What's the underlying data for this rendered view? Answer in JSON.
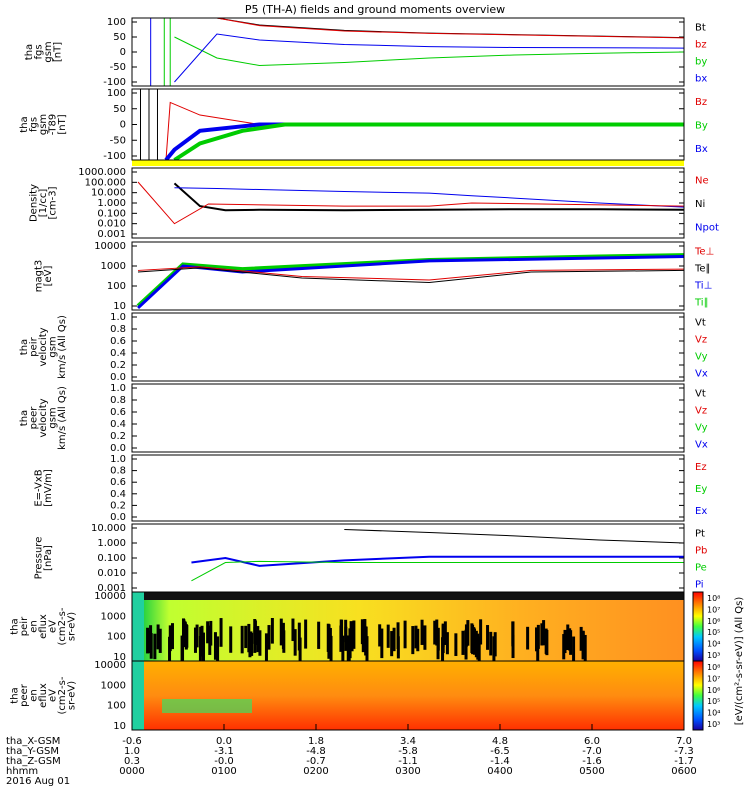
{
  "title": "P5 (TH-A) fields and ground moments overview",
  "date_label": "2016 Aug 01",
  "colors": {
    "black": "#000000",
    "red": "#e00000",
    "green": "#00cc00",
    "blue": "#0000ee",
    "yellow": "#ffff00"
  },
  "bottom_axis": {
    "rows": [
      {
        "name": "tha_X-GSM",
        "values": [
          "-0.6",
          "0.0",
          "1.8",
          "3.4",
          "4.8",
          "6.0",
          "7.0"
        ]
      },
      {
        "name": "tha_Y-GSM",
        "values": [
          "1.0",
          "-3.1",
          "-4.8",
          "-5.8",
          "-6.5",
          "-7.0",
          "-7.3"
        ]
      },
      {
        "name": "tha_Z-GSM",
        "values": [
          "0.3",
          "-0.0",
          "-0.7",
          "-1.1",
          "-1.4",
          "-1.6",
          "-1.7"
        ]
      },
      {
        "name": "hhmm",
        "values": [
          "0000",
          "0100",
          "0200",
          "0300",
          "0400",
          "0500",
          "0600"
        ]
      }
    ]
  },
  "panels": [
    {
      "id": "fgs",
      "ylabel": [
        "tha",
        "fgs",
        "gsm",
        "[nT]"
      ],
      "ticks": [
        "100",
        "50",
        "0",
        "-50",
        "-100"
      ],
      "legend": [
        {
          "text": "Bt",
          "color": "black"
        },
        {
          "text": "bz",
          "color": "red"
        },
        {
          "text": "by",
          "color": "green"
        },
        {
          "text": "bx",
          "color": "blue"
        }
      ]
    },
    {
      "id": "fgs_dev",
      "ylabel": [
        "tha",
        "fgs",
        "gsm",
        "-T89",
        "[nT]"
      ],
      "ticks": [
        "100",
        "50",
        "0",
        "-50",
        "-100"
      ],
      "legend": [
        {
          "text": "Bz",
          "color": "red"
        },
        {
          "text": "By",
          "color": "green"
        },
        {
          "text": "Bx",
          "color": "blue"
        }
      ]
    },
    {
      "id": "density",
      "ylabel": [
        "Density",
        "[1/cc]",
        "[cm-3]"
      ],
      "ticks": [
        "1000.000",
        "100.000",
        "10.000",
        "1.000",
        "0.100",
        "0.010",
        "0.001"
      ],
      "legend": [
        {
          "text": "Ne",
          "color": "red"
        },
        {
          "text": "Ni",
          "color": "black"
        },
        {
          "text": "Npot",
          "color": "blue"
        }
      ]
    },
    {
      "id": "temp",
      "ylabel": [
        "magt3",
        "[eV]"
      ],
      "ticks": [
        "10000",
        "1000",
        "100",
        "10"
      ],
      "legend": [
        {
          "text": "Te⊥",
          "color": "red"
        },
        {
          "text": "Te∥",
          "color": "black"
        },
        {
          "text": "Ti⊥",
          "color": "blue"
        },
        {
          "text": "Ti∥",
          "color": "green"
        }
      ]
    },
    {
      "id": "peir_vel",
      "ylabel": [
        "tha",
        "peir",
        "velocity",
        "gsm",
        "km/s (All Qs)"
      ],
      "ticks": [
        "1.0",
        "0.8",
        "0.6",
        "0.4",
        "0.2",
        "0.0"
      ],
      "legend": [
        {
          "text": "Vt",
          "color": "black"
        },
        {
          "text": "Vz",
          "color": "red"
        },
        {
          "text": "Vy",
          "color": "green"
        },
        {
          "text": "Vx",
          "color": "blue"
        }
      ]
    },
    {
      "id": "peer_vel",
      "ylabel": [
        "tha",
        "peer",
        "velocity",
        "gsm",
        "km/s (All Qs)"
      ],
      "ticks": [
        "1.0",
        "0.8",
        "0.6",
        "0.4",
        "0.2",
        "0.0"
      ],
      "legend": [
        {
          "text": "Vt",
          "color": "black"
        },
        {
          "text": "Vz",
          "color": "red"
        },
        {
          "text": "Vy",
          "color": "green"
        },
        {
          "text": "Vx",
          "color": "blue"
        }
      ]
    },
    {
      "id": "efield",
      "ylabel": [
        "E=-VxB",
        "[mV/m]"
      ],
      "ticks": [
        "1.0",
        "0.8",
        "0.6",
        "0.4",
        "0.2",
        "0.0"
      ],
      "legend": [
        {
          "text": "Ez",
          "color": "red"
        },
        {
          "text": "Ey",
          "color": "green"
        },
        {
          "text": "Ex",
          "color": "blue"
        }
      ]
    },
    {
      "id": "pressure",
      "ylabel": [
        "Pressure",
        "[nPa]"
      ],
      "ticks": [
        "10.000",
        "1.000",
        "0.100",
        "0.010",
        "0.001"
      ],
      "legend": [
        {
          "text": "Pt",
          "color": "black"
        },
        {
          "text": "Pb",
          "color": "red"
        },
        {
          "text": "Pe",
          "color": "green"
        },
        {
          "text": "Pi",
          "color": "blue"
        }
      ]
    },
    {
      "id": "peir_spec",
      "ylabel": [
        "tha",
        "peir",
        "en",
        "eflux",
        "eV",
        "(cm2-s-",
        "sr-eV)"
      ],
      "ticks": [
        "10000",
        "1000",
        "100",
        "10"
      ]
    },
    {
      "id": "peer_spec",
      "ylabel": [
        "tha",
        "peer",
        "en",
        "eflux",
        "eV",
        "(cm2-s-",
        "sr-eV)"
      ],
      "ticks": [
        "10000",
        "1000",
        "100",
        "10"
      ]
    }
  ],
  "colorbar": {
    "label": "[eV/(cm²-s-sr-eV)] (All Qs)",
    "ticks_top": [
      "10⁸",
      "10⁷",
      "10⁶",
      "10⁵",
      "10⁴",
      "10³"
    ],
    "ticks_bottom": [
      "10⁸",
      "10⁷",
      "10⁶",
      "10⁵",
      "10⁴",
      "10³"
    ]
  },
  "chart_data": {
    "type": "line",
    "x_label": "hhmm",
    "x_range": [
      "0000",
      "0600"
    ],
    "series": [
      {
        "panel": "fgs",
        "name": "Bt",
        "x": [
          0.0,
          0.5,
          1,
          2,
          3,
          4,
          5,
          6
        ],
        "values": [
          700,
          120,
          90,
          72,
          63,
          58,
          53,
          48
        ]
      },
      {
        "panel": "fgs",
        "name": "bz",
        "x": [
          0.0,
          0.5,
          1,
          2,
          3,
          4,
          5,
          6
        ],
        "values": [
          500,
          120,
          88,
          70,
          62,
          57,
          52,
          47
        ]
      },
      {
        "panel": "fgs",
        "name": "by",
        "x": [
          0.0,
          0.5,
          1,
          2,
          3,
          4,
          5,
          6
        ],
        "values": [
          50,
          -20,
          -45,
          -35,
          -20,
          -10,
          -4,
          0
        ]
      },
      {
        "panel": "fgs",
        "name": "bx",
        "x": [
          0.0,
          0.5,
          1,
          2,
          3,
          4,
          5,
          6
        ],
        "values": [
          -100,
          60,
          40,
          25,
          18,
          15,
          14,
          13
        ]
      },
      {
        "panel": "density",
        "name": "Ni",
        "x": [
          0.0,
          0.3,
          0.6,
          1,
          2,
          3,
          4,
          5,
          6
        ],
        "values": [
          80,
          0.5,
          0.2,
          0.22,
          0.2,
          0.22,
          0.25,
          0.25,
          0.22
        ]
      },
      {
        "panel": "density",
        "name": "Npot",
        "x": [
          0.0,
          0.5,
          1,
          2,
          3,
          3.5,
          4,
          5,
          6
        ],
        "values": [
          30,
          25,
          20,
          13,
          9,
          5,
          3,
          1,
          0.4
        ]
      },
      {
        "panel": "pressure",
        "name": "Pt",
        "x": [
          2,
          3,
          4,
          5,
          6
        ],
        "values": [
          8,
          5,
          3,
          1.6,
          1.0
        ]
      },
      {
        "panel": "pressure",
        "name": "Pi",
        "x": [
          0.2,
          0.6,
          1,
          2,
          3,
          4,
          5,
          6
        ],
        "values": [
          0.05,
          0.1,
          0.03,
          0.07,
          0.12,
          0.12,
          0.12,
          0.12
        ]
      },
      {
        "panel": "pressure",
        "name": "Pe",
        "x": [
          0.2,
          0.6,
          1,
          2,
          3,
          4,
          5,
          6
        ],
        "values": [
          0.003,
          0.05,
          0.06,
          0.05,
          0.05,
          0.05,
          0.05,
          0.05
        ]
      }
    ]
  }
}
